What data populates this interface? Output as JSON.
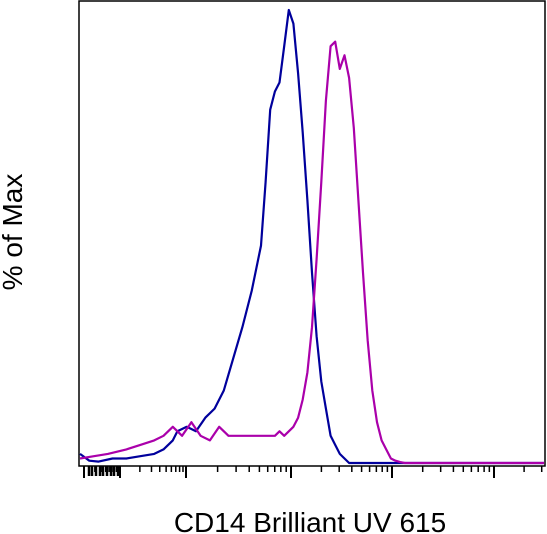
{
  "chart_data": {
    "type": "line",
    "title": "",
    "xlabel": "CD14 Brilliant UV 615",
    "ylabel": "% of Max",
    "xscale": "log",
    "xlim": [
      0,
      1
    ],
    "ylim": [
      0,
      100
    ],
    "grid": false,
    "legend": "none",
    "series": [
      {
        "color": "#00009c",
        "x": [
          0.0,
          0.02,
          0.04,
          0.07,
          0.1,
          0.13,
          0.16,
          0.18,
          0.2,
          0.21,
          0.23,
          0.25,
          0.27,
          0.29,
          0.31,
          0.33,
          0.35,
          0.37,
          0.39,
          0.4,
          0.41,
          0.42,
          0.43,
          0.44,
          0.45,
          0.46,
          0.47,
          0.48,
          0.49,
          0.5,
          0.51,
          0.52,
          0.53,
          0.54,
          0.55,
          0.56,
          0.57,
          0.58,
          0.6,
          0.62,
          0.65,
          0.7,
          0.8,
          0.9,
          1.0
        ],
        "y": [
          2,
          0.5,
          0.3,
          1,
          1,
          1.5,
          2,
          3,
          5,
          7,
          8,
          7,
          10,
          12,
          16,
          23,
          30,
          38,
          48,
          62,
          78,
          82,
          84,
          92,
          100,
          97,
          86,
          73,
          58,
          42,
          28,
          18,
          12,
          6,
          4,
          2,
          1,
          0,
          0,
          0,
          0,
          0,
          0,
          0,
          0
        ]
      },
      {
        "color": "#aa00aa",
        "x": [
          0.0,
          0.03,
          0.06,
          0.1,
          0.13,
          0.16,
          0.18,
          0.2,
          0.22,
          0.24,
          0.26,
          0.28,
          0.3,
          0.32,
          0.34,
          0.36,
          0.38,
          0.4,
          0.42,
          0.43,
          0.44,
          0.45,
          0.46,
          0.47,
          0.48,
          0.49,
          0.5,
          0.51,
          0.52,
          0.53,
          0.54,
          0.55,
          0.56,
          0.57,
          0.58,
          0.59,
          0.6,
          0.61,
          0.62,
          0.63,
          0.64,
          0.65,
          0.66,
          0.67,
          0.68,
          0.69,
          0.7,
          0.72,
          0.75,
          0.8,
          0.9,
          1.0
        ],
        "y": [
          1,
          1.5,
          2,
          3,
          4,
          5,
          6,
          8,
          6,
          9,
          6,
          5,
          8,
          6,
          6,
          6,
          6,
          6,
          6,
          7,
          6,
          7,
          8,
          10,
          14,
          20,
          30,
          45,
          62,
          80,
          92,
          93,
          87,
          90,
          85,
          74,
          58,
          42,
          27,
          16,
          9,
          5,
          3,
          1,
          0.5,
          0.2,
          0,
          0,
          0,
          0,
          0,
          0
        ]
      }
    ]
  }
}
